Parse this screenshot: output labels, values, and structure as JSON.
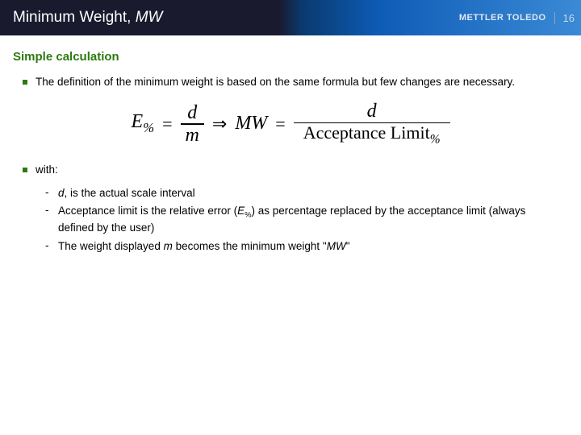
{
  "header": {
    "title_prefix": "Minimum Weight, ",
    "title_em": "MW",
    "brand": "METTLER TOLEDO",
    "slide_number": "16"
  },
  "subtitle": "Simple calculation",
  "bullets": {
    "b1": "The definition of the minimum weight is based on the same formula but few changes are necessary.",
    "b2": "with:"
  },
  "formula": {
    "lhs_var": "E",
    "lhs_sub": "%",
    "f1_num": "d",
    "f1_den": "m",
    "mid_var": "MW",
    "f2_num": "d",
    "f2_den_text": "Acceptance Limit",
    "f2_den_sub": "%"
  },
  "sub": {
    "s1_pre": "",
    "s1_em1": "d",
    "s1_post": ", is the actual scale interval",
    "s2_pre": "Acceptance limit is the relative error (",
    "s2_em": "E",
    "s2_sub": "%",
    "s2_post": ") as percentage replaced by the acceptance limit (always defined by the user)",
    "s3_pre": "The weight displayed ",
    "s3_em1": "m",
    "s3_mid": " becomes the minimum weight \"",
    "s3_em2": "MW",
    "s3_post": "\""
  },
  "colors": {
    "accent_green": "#2d7a0f",
    "header_dark": "#1a1a2e",
    "header_blue": "#2170c4"
  }
}
